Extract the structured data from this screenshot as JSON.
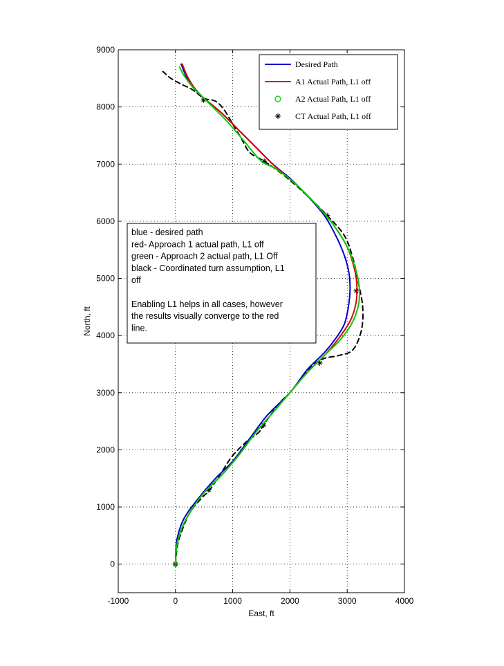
{
  "chart_data": {
    "type": "line",
    "xlabel": "East, ft",
    "ylabel": "North, ft",
    "xlim": [
      -1000,
      4000
    ],
    "ylim": [
      -500,
      9000
    ],
    "xticks": [
      "-1000",
      "0",
      "1000",
      "2000",
      "3000",
      "4000"
    ],
    "xtick_values": [
      -1000,
      0,
      1000,
      2000,
      3000,
      4000
    ],
    "yticks": [
      "0",
      "1000",
      "2000",
      "3000",
      "4000",
      "5000",
      "6000",
      "7000",
      "8000",
      "9000"
    ],
    "ytick_values": [
      0,
      1000,
      2000,
      3000,
      4000,
      5000,
      6000,
      7000,
      8000,
      9000
    ],
    "grid": true,
    "legend_position": "top-right",
    "legend": [
      {
        "label": "Desired Path",
        "color": "#0000cc",
        "style": "line"
      },
      {
        "label": "A1 Actual Path, L1 off",
        "color": "#e00000",
        "style": "line"
      },
      {
        "label": "A2 Actual Path, L1 off",
        "color": "#00cc00",
        "style": "circle"
      },
      {
        "label": "CT Actual Path, L1 off",
        "color": "#000000",
        "style": "star"
      }
    ],
    "series": [
      {
        "name": "Desired Path",
        "color": "#0000cc",
        "points": [
          [
            0,
            100
          ],
          [
            30,
            450
          ],
          [
            150,
            800
          ],
          [
            400,
            1150
          ],
          [
            700,
            1500
          ],
          [
            1000,
            1800
          ],
          [
            1300,
            2200
          ],
          [
            1600,
            2600
          ],
          [
            2000,
            3000
          ],
          [
            2300,
            3400
          ],
          [
            2600,
            3700
          ],
          [
            2800,
            3950
          ],
          [
            2950,
            4200
          ],
          [
            3020,
            4500
          ],
          [
            3050,
            4800
          ],
          [
            3030,
            5100
          ],
          [
            2950,
            5400
          ],
          [
            2800,
            5750
          ],
          [
            2600,
            6100
          ],
          [
            2300,
            6450
          ],
          [
            2000,
            6750
          ],
          [
            1700,
            7000
          ],
          [
            1400,
            7300
          ],
          [
            1100,
            7600
          ],
          [
            800,
            7900
          ],
          [
            500,
            8150
          ],
          [
            300,
            8350
          ],
          [
            180,
            8550
          ],
          [
            100,
            8750
          ]
        ]
      },
      {
        "name": "A1 Actual Path, L1 off",
        "color": "#e00000",
        "points": [
          [
            0,
            0
          ],
          [
            20,
            300
          ],
          [
            100,
            600
          ],
          [
            250,
            900
          ],
          [
            500,
            1250
          ],
          [
            800,
            1550
          ],
          [
            1100,
            1900
          ],
          [
            1400,
            2300
          ],
          [
            1700,
            2650
          ],
          [
            2000,
            3000
          ],
          [
            2300,
            3350
          ],
          [
            2600,
            3650
          ],
          [
            2850,
            3950
          ],
          [
            3050,
            4250
          ],
          [
            3150,
            4550
          ],
          [
            3170,
            4850
          ],
          [
            3130,
            5150
          ],
          [
            3000,
            5550
          ],
          [
            2750,
            5950
          ],
          [
            2450,
            6300
          ],
          [
            2100,
            6650
          ],
          [
            1750,
            6950
          ],
          [
            1400,
            7300
          ],
          [
            1100,
            7600
          ],
          [
            800,
            7900
          ],
          [
            500,
            8150
          ],
          [
            320,
            8350
          ],
          [
            200,
            8550
          ],
          [
            120,
            8750
          ]
        ]
      },
      {
        "name": "A2 Actual Path, L1 off",
        "color": "#00cc00",
        "points": [
          [
            0,
            0
          ],
          [
            20,
            300
          ],
          [
            100,
            600
          ],
          [
            250,
            900
          ],
          [
            500,
            1250
          ],
          [
            800,
            1550
          ],
          [
            1100,
            1900
          ],
          [
            1400,
            2300
          ],
          [
            1700,
            2650
          ],
          [
            2000,
            3000
          ],
          [
            2300,
            3350
          ],
          [
            2600,
            3650
          ],
          [
            2900,
            3950
          ],
          [
            3100,
            4250
          ],
          [
            3200,
            4550
          ],
          [
            3210,
            4850
          ],
          [
            3150,
            5150
          ],
          [
            3000,
            5550
          ],
          [
            2750,
            5950
          ],
          [
            2450,
            6300
          ],
          [
            2100,
            6650
          ],
          [
            1750,
            6920
          ],
          [
            1500,
            7050
          ],
          [
            1200,
            7400
          ],
          [
            900,
            7750
          ],
          [
            550,
            8100
          ],
          [
            300,
            8350
          ],
          [
            150,
            8550
          ],
          [
            70,
            8700
          ]
        ]
      },
      {
        "name": "CT Actual Path, L1 off",
        "color": "#000000",
        "dash": true,
        "points": [
          [
            0,
            0
          ],
          [
            30,
            300
          ],
          [
            100,
            550
          ],
          [
            250,
            900
          ],
          [
            450,
            1150
          ],
          [
            600,
            1300
          ],
          [
            800,
            1600
          ],
          [
            1000,
            1900
          ],
          [
            1250,
            2150
          ],
          [
            1450,
            2300
          ],
          [
            1550,
            2450
          ],
          [
            1800,
            2800
          ],
          [
            2000,
            3000
          ],
          [
            2200,
            3250
          ],
          [
            2400,
            3480
          ],
          [
            2600,
            3600
          ],
          [
            2850,
            3650
          ],
          [
            3100,
            3750
          ],
          [
            3250,
            4100
          ],
          [
            3270,
            4500
          ],
          [
            3200,
            4900
          ],
          [
            3100,
            5350
          ],
          [
            2950,
            5750
          ],
          [
            2650,
            6100
          ],
          [
            2300,
            6450
          ],
          [
            1900,
            6800
          ],
          [
            1550,
            7050
          ],
          [
            1300,
            7200
          ],
          [
            1150,
            7450
          ],
          [
            1000,
            7700
          ],
          [
            850,
            7950
          ],
          [
            700,
            8100
          ],
          [
            500,
            8150
          ],
          [
            300,
            8300
          ],
          [
            100,
            8400
          ],
          [
            -80,
            8500
          ],
          [
            -220,
            8620
          ]
        ],
        "markers": [
          [
            0,
            0
          ],
          [
            580,
            1300
          ],
          [
            1540,
            2430
          ],
          [
            2520,
            3520
          ],
          [
            3160,
            4780
          ],
          [
            2650,
            6100
          ],
          [
            1550,
            7050
          ],
          [
            490,
            8120
          ]
        ]
      }
    ],
    "annotation": [
      "blue - desired path",
      "red- Approach 1 actual path, L1 off",
      "green - Approach 2 actual path, L1 Off",
      "black - Coordinated turn assumption, L1",
      "off",
      "",
      "Enabling L1 helps in all cases, however",
      "the results visually converge to the red",
      "line."
    ]
  }
}
